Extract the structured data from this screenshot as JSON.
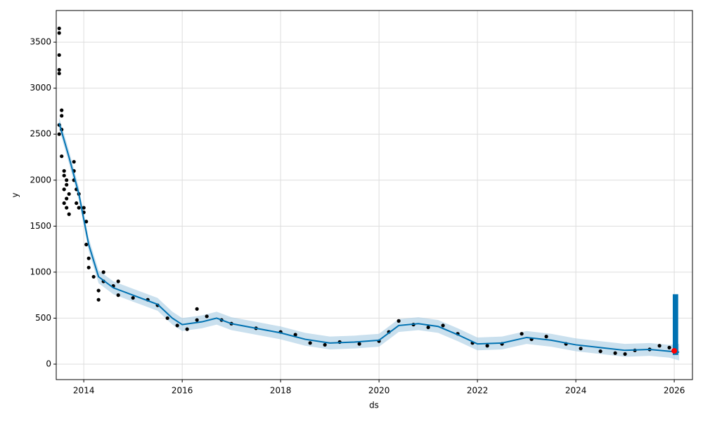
{
  "chart_data": {
    "type": "forecast",
    "x_label": "ds",
    "y_label": "y",
    "xlim": [
      2013.44,
      2026.37
    ],
    "ylim": [
      -168,
      3844
    ],
    "xticks": [
      2014,
      2016,
      2018,
      2020,
      2022,
      2024,
      2026
    ],
    "yticks": [
      0,
      500,
      1000,
      1500,
      2000,
      2500,
      3000,
      3500
    ],
    "grid": true,
    "observed": {
      "color": "#000000",
      "x": [
        2013.5,
        2013.5,
        2013.5,
        2013.5,
        2013.5,
        2013.5,
        2013.5,
        2013.55,
        2013.55,
        2013.55,
        2013.55,
        2013.6,
        2013.6,
        2013.6,
        2013.6,
        2013.65,
        2013.65,
        2013.65,
        2013.65,
        2013.7,
        2013.7,
        2013.8,
        2013.8,
        2013.8,
        2013.85,
        2013.85,
        2013.9,
        2013.9,
        2014.0,
        2014.0,
        2014.05,
        2014.05,
        2014.1,
        2014.1,
        2014.2,
        2014.3,
        2014.3,
        2014.4,
        2014.4,
        2014.6,
        2014.7,
        2014.7,
        2015.0,
        2015.3,
        2015.5,
        2015.7,
        2015.9,
        2016.1,
        2016.3,
        2016.3,
        2016.5,
        2016.8,
        2017.0,
        2017.5,
        2018.0,
        2018.3,
        2018.6,
        2018.9,
        2019.2,
        2019.6,
        2020.0,
        2020.2,
        2020.4,
        2020.7,
        2021.0,
        2021.3,
        2021.6,
        2021.9,
        2022.2,
        2022.5,
        2022.9,
        2023.1,
        2023.4,
        2023.8,
        2024.1,
        2024.5,
        2024.8,
        2025.0,
        2025.2,
        2025.5,
        2025.7,
        2025.9
      ],
      "values": [
        3650,
        3600,
        3360,
        3200,
        3160,
        2600,
        2500,
        2760,
        2700,
        2550,
        2260,
        2050,
        1900,
        2100,
        1750,
        1700,
        2000,
        1950,
        1800,
        1630,
        1850,
        2200,
        2100,
        2000,
        1900,
        1750,
        1850,
        1700,
        1700,
        1650,
        1550,
        1300,
        1050,
        1150,
        950,
        800,
        700,
        1000,
        900,
        850,
        900,
        750,
        720,
        700,
        640,
        500,
        420,
        380,
        600,
        480,
        520,
        480,
        440,
        390,
        350,
        320,
        230,
        210,
        240,
        220,
        250,
        350,
        470,
        430,
        400,
        420,
        330,
        230,
        200,
        220,
        330,
        270,
        300,
        220,
        170,
        140,
        120,
        110,
        150,
        160,
        200,
        180
      ]
    },
    "forecast": {
      "color": "#0072b2",
      "band_color": "#a6cbe3",
      "x": [
        2013.5,
        2013.7,
        2013.9,
        2014.1,
        2014.3,
        2014.6,
        2015.0,
        2015.5,
        2015.8,
        2016.0,
        2016.4,
        2016.7,
        2017.0,
        2017.5,
        2018.0,
        2018.5,
        2019.0,
        2019.5,
        2020.0,
        2020.4,
        2020.8,
        2021.2,
        2021.6,
        2022.0,
        2022.5,
        2023.0,
        2023.5,
        2024.0,
        2024.5,
        2025.0,
        2025.5,
        2025.9,
        2026.1
      ],
      "values": [
        2620,
        2250,
        1850,
        1300,
        950,
        830,
        750,
        650,
        500,
        430,
        460,
        500,
        440,
        390,
        340,
        270,
        230,
        240,
        260,
        420,
        440,
        410,
        320,
        220,
        230,
        290,
        260,
        210,
        180,
        150,
        160,
        140,
        130
      ],
      "lower": [
        2560,
        2180,
        1780,
        1230,
        880,
        760,
        680,
        580,
        430,
        360,
        390,
        430,
        370,
        320,
        270,
        200,
        160,
        170,
        190,
        350,
        370,
        340,
        250,
        150,
        160,
        220,
        190,
        140,
        110,
        80,
        90,
        70,
        40
      ],
      "upper": [
        2680,
        2320,
        1920,
        1370,
        1020,
        900,
        820,
        720,
        570,
        500,
        530,
        570,
        510,
        460,
        410,
        340,
        300,
        310,
        330,
        490,
        510,
        480,
        390,
        290,
        300,
        360,
        330,
        280,
        250,
        220,
        230,
        210,
        220
      ]
    },
    "future_block": {
      "color": "#0072b2",
      "x": [
        2025.97,
        2026.08
      ],
      "y": [
        100,
        760
      ]
    },
    "last_point": {
      "color": "#ff0000",
      "x": 2026.0,
      "y": 145
    }
  }
}
